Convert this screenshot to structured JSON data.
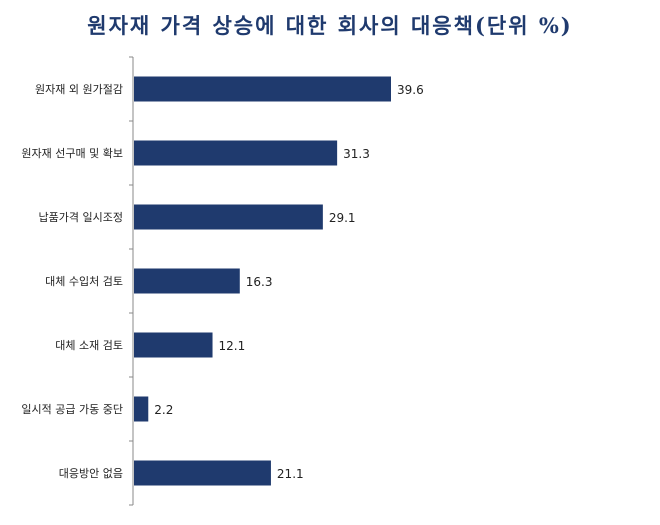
{
  "chart_data": {
    "type": "bar",
    "orientation": "horizontal",
    "title": "원자재 가격 상승에 대한 회사의 대응책(단위 %)",
    "categories": [
      "원자재 외 원가절감",
      "원자재 선구매 및 확보",
      "납품가격 일시조정",
      "대체 수입처 검토",
      "대체 소재 검토",
      "일시적 공급 가동 중단",
      "대응방안 없음"
    ],
    "values": [
      39.6,
      31.3,
      29.1,
      16.3,
      12.1,
      2.2,
      21.1
    ],
    "value_labels": [
      "39.6",
      "31.3",
      "29.1",
      "16.3",
      "12.1",
      "2.2",
      "21.1"
    ],
    "xlim": [
      0,
      50
    ],
    "grid": false,
    "legend": "none",
    "bar_color": "#1f3a6e",
    "axis_color": "#888888"
  }
}
